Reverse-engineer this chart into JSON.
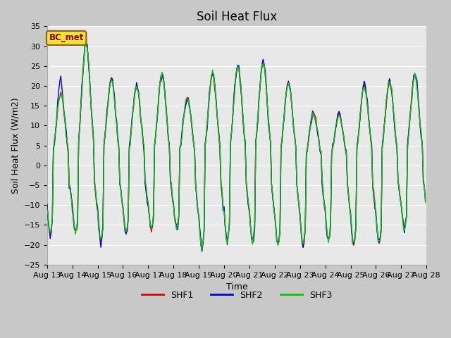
{
  "title": "Soil Heat Flux",
  "ylabel": "Soil Heat Flux (W/m2)",
  "xlabel": "Time",
  "ylim": [
    -25,
    35
  ],
  "yticks": [
    -25,
    -20,
    -15,
    -10,
    -5,
    0,
    5,
    10,
    15,
    20,
    25,
    30,
    35
  ],
  "x_labels": [
    "Aug 13",
    "Aug 14",
    "Aug 15",
    "Aug 16",
    "Aug 17",
    "Aug 18",
    "Aug 19",
    "Aug 20",
    "Aug 21",
    "Aug 22",
    "Aug 23",
    "Aug 24",
    "Aug 25",
    "Aug 26",
    "Aug 27",
    "Aug 28"
  ],
  "annotation": "BC_met",
  "fig_bg_color": "#c8c8c8",
  "plot_bg_color": "#e8e8e8",
  "legend_labels": [
    "SHF1",
    "SHF2",
    "SHF3"
  ],
  "legend_colors": [
    "#dd0000",
    "#0000dd",
    "#00cc00"
  ],
  "line_width": 1.0,
  "title_fontsize": 12,
  "axis_fontsize": 9,
  "tick_fontsize": 8
}
